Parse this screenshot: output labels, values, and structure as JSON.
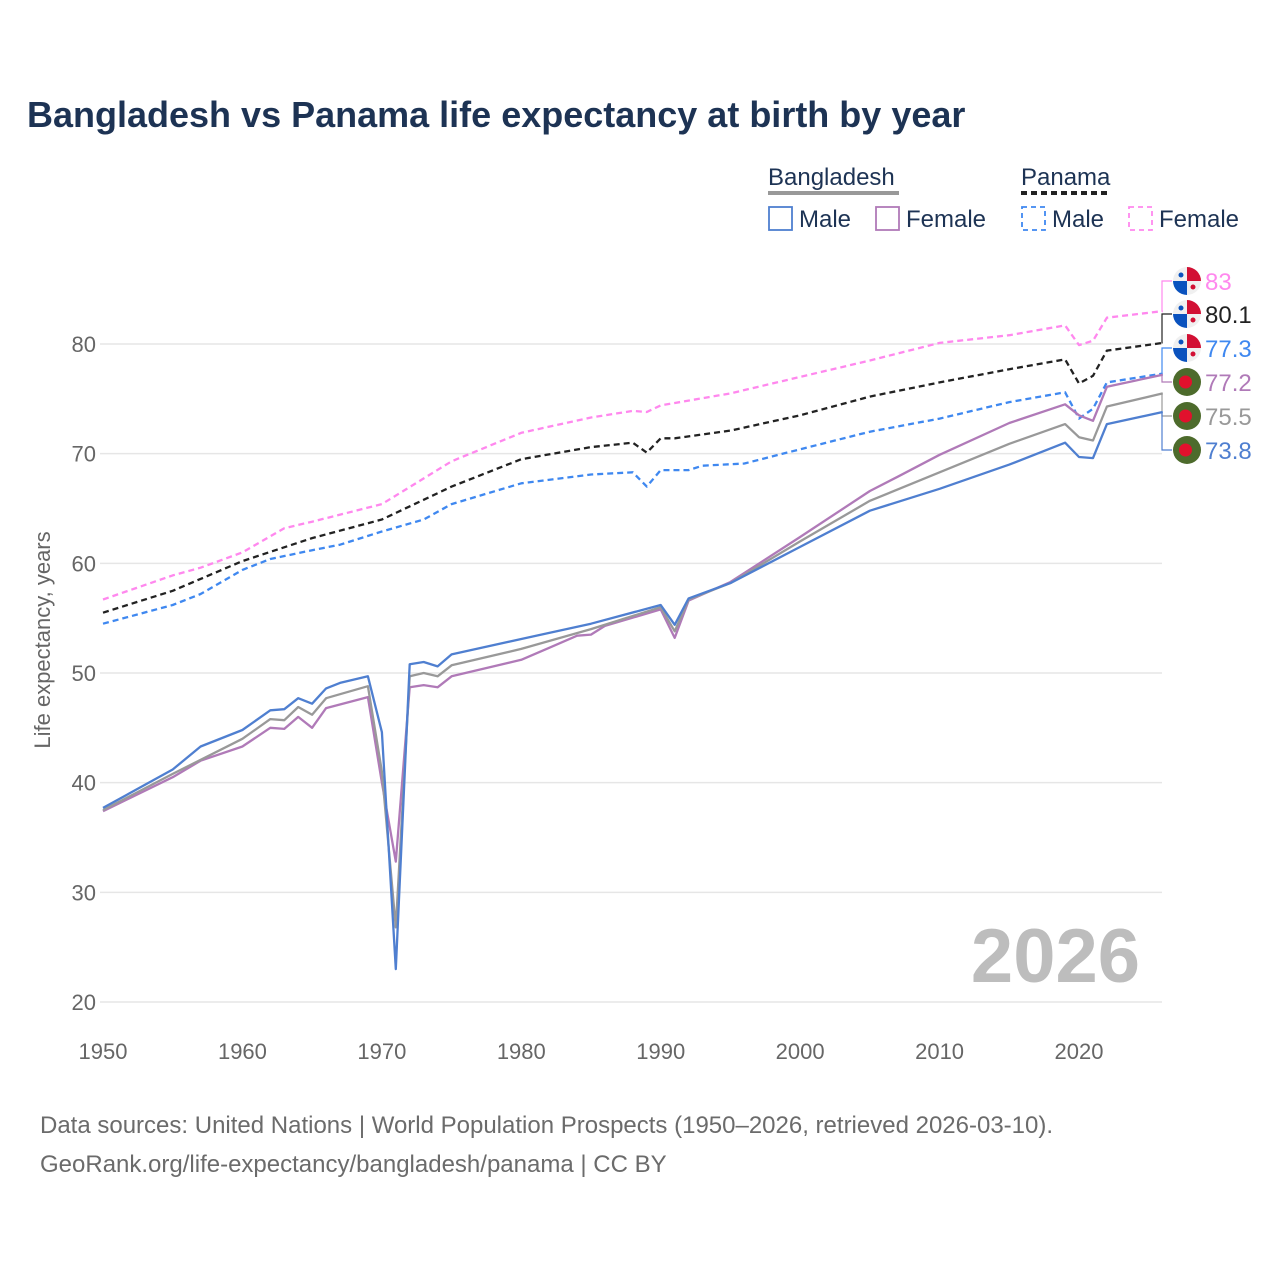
{
  "chart_data": {
    "type": "line",
    "title": "Bangladesh vs Panama life expectancy at birth by year",
    "ylabel": "Life expectancy, years",
    "xlabel": "",
    "xlim": [
      1950,
      2026
    ],
    "ylim": [
      20,
      85
    ],
    "xticks": [
      1950,
      1960,
      1970,
      1980,
      1990,
      2000,
      2010,
      2020
    ],
    "yticks": [
      20,
      30,
      40,
      50,
      60,
      70,
      80
    ],
    "grid": true,
    "watermark_year": "2026",
    "legend": {
      "placement": "top-right",
      "groups": [
        {
          "label": "Bangladesh",
          "items": [
            "Male",
            "Female"
          ]
        },
        {
          "label": "Panama",
          "items": [
            "Male",
            "Female"
          ]
        }
      ]
    },
    "series": [
      {
        "name": "Panama Female",
        "country": "panama",
        "color": "#ff88ee",
        "dashed": true,
        "end_label": "83",
        "points": [
          [
            1950,
            56.7
          ],
          [
            1955,
            58.9
          ],
          [
            1957,
            59.6
          ],
          [
            1960,
            61
          ],
          [
            1963,
            63.2
          ],
          [
            1965,
            63.8
          ],
          [
            1970,
            65.4
          ],
          [
            1975,
            69.3
          ],
          [
            1980,
            71.9
          ],
          [
            1985,
            73.3
          ],
          [
            1988,
            73.9
          ],
          [
            1989,
            73.8
          ],
          [
            1990,
            74.4
          ],
          [
            1995,
            75.5
          ],
          [
            2000,
            77
          ],
          [
            2005,
            78.5
          ],
          [
            2010,
            80.1
          ],
          [
            2015,
            80.8
          ],
          [
            2019,
            81.7
          ],
          [
            2020,
            79.9
          ],
          [
            2021,
            80.3
          ],
          [
            2022,
            82.4
          ],
          [
            2026,
            83
          ]
        ]
      },
      {
        "name": "Panama Total",
        "country": "panama",
        "color": "#222222",
        "dashed": true,
        "end_label": "80.1",
        "points": [
          [
            1950,
            55.5
          ],
          [
            1955,
            57.5
          ],
          [
            1960,
            60.2
          ],
          [
            1965,
            62.3
          ],
          [
            1970,
            64
          ],
          [
            1975,
            67
          ],
          [
            1980,
            69.5
          ],
          [
            1985,
            70.6
          ],
          [
            1988,
            71
          ],
          [
            1989,
            70.1
          ],
          [
            1990,
            71.4
          ],
          [
            1991,
            71.4
          ],
          [
            1995,
            72.1
          ],
          [
            2000,
            73.5
          ],
          [
            2005,
            75.2
          ],
          [
            2010,
            76.5
          ],
          [
            2015,
            77.7
          ],
          [
            2019,
            78.6
          ],
          [
            2020,
            76.4
          ],
          [
            2021,
            77.1
          ],
          [
            2022,
            79.4
          ],
          [
            2026,
            80.1
          ]
        ]
      },
      {
        "name": "Panama Male",
        "country": "panama",
        "color": "#3f88f0",
        "dashed": true,
        "end_label": "77.3",
        "points": [
          [
            1950,
            54.5
          ],
          [
            1955,
            56.2
          ],
          [
            1957,
            57.2
          ],
          [
            1960,
            59.4
          ],
          [
            1962,
            60.4
          ],
          [
            1965,
            61.2
          ],
          [
            1967,
            61.7
          ],
          [
            1970,
            62.9
          ],
          [
            1973,
            64
          ],
          [
            1975,
            65.4
          ],
          [
            1980,
            67.3
          ],
          [
            1985,
            68.1
          ],
          [
            1988,
            68.3
          ],
          [
            1989,
            67
          ],
          [
            1990,
            68.5
          ],
          [
            1992,
            68.5
          ],
          [
            1993,
            68.9
          ],
          [
            1996,
            69.1
          ],
          [
            2000,
            70.4
          ],
          [
            2005,
            72
          ],
          [
            2010,
            73.2
          ],
          [
            2015,
            74.7
          ],
          [
            2019,
            75.6
          ],
          [
            2020,
            73.2
          ],
          [
            2021,
            74.1
          ],
          [
            2022,
            76.5
          ],
          [
            2026,
            77.3
          ]
        ]
      },
      {
        "name": "Bangladesh Female",
        "country": "bangladesh",
        "color": "#b07ab8",
        "dashed": false,
        "end_label": "77.2",
        "points": [
          [
            1950,
            37.4
          ],
          [
            1955,
            40.5
          ],
          [
            1957,
            42
          ],
          [
            1960,
            43.3
          ],
          [
            1962,
            45
          ],
          [
            1963,
            44.9
          ],
          [
            1964,
            46
          ],
          [
            1965,
            45
          ],
          [
            1966,
            46.8
          ],
          [
            1969,
            47.8
          ],
          [
            1970,
            40
          ],
          [
            1971,
            32.8
          ],
          [
            1972,
            48.7
          ],
          [
            1973,
            48.9
          ],
          [
            1974,
            48.7
          ],
          [
            1975,
            49.7
          ],
          [
            1980,
            51.2
          ],
          [
            1982,
            52.3
          ],
          [
            1984,
            53.4
          ],
          [
            1985,
            53.5
          ],
          [
            1986,
            54.3
          ],
          [
            1990,
            55.8
          ],
          [
            1991,
            53.2
          ],
          [
            1992,
            56.6
          ],
          [
            1995,
            58.3
          ],
          [
            2000,
            62.4
          ],
          [
            2005,
            66.6
          ],
          [
            2007,
            67.9
          ],
          [
            2010,
            69.9
          ],
          [
            2015,
            72.8
          ],
          [
            2019,
            74.5
          ],
          [
            2020,
            73.5
          ],
          [
            2021,
            73
          ],
          [
            2022,
            76.1
          ],
          [
            2026,
            77.2
          ]
        ]
      },
      {
        "name": "Bangladesh Total",
        "country": "bangladesh",
        "color": "#999999",
        "dashed": false,
        "end_label": "75.5",
        "points": [
          [
            1950,
            37.5
          ],
          [
            1955,
            40.8
          ],
          [
            1960,
            44
          ],
          [
            1962,
            45.8
          ],
          [
            1963,
            45.7
          ],
          [
            1964,
            46.9
          ],
          [
            1965,
            46.2
          ],
          [
            1966,
            47.7
          ],
          [
            1969,
            48.8
          ],
          [
            1970,
            41
          ],
          [
            1971,
            26.8
          ],
          [
            1972,
            49.7
          ],
          [
            1973,
            50
          ],
          [
            1974,
            49.7
          ],
          [
            1975,
            50.7
          ],
          [
            1980,
            52.2
          ],
          [
            1985,
            54
          ],
          [
            1990,
            56
          ],
          [
            1991,
            53.8
          ],
          [
            1992,
            56.7
          ],
          [
            1995,
            58.2
          ],
          [
            2000,
            62
          ],
          [
            2005,
            65.7
          ],
          [
            2010,
            68.3
          ],
          [
            2015,
            70.9
          ],
          [
            2019,
            72.7
          ],
          [
            2020,
            71.5
          ],
          [
            2021,
            71.2
          ],
          [
            2022,
            74.3
          ],
          [
            2026,
            75.5
          ]
        ]
      },
      {
        "name": "Bangladesh Male",
        "country": "bangladesh",
        "color": "#4f7fd0",
        "dashed": false,
        "end_label": "73.8",
        "points": [
          [
            1950,
            37.7
          ],
          [
            1955,
            41.2
          ],
          [
            1957,
            43.3
          ],
          [
            1960,
            44.8
          ],
          [
            1962,
            46.6
          ],
          [
            1963,
            46.7
          ],
          [
            1964,
            47.7
          ],
          [
            1965,
            47.2
          ],
          [
            1966,
            48.6
          ],
          [
            1967,
            49.1
          ],
          [
            1969,
            49.7
          ],
          [
            1970,
            44.6
          ],
          [
            1971,
            23
          ],
          [
            1972,
            50.8
          ],
          [
            1973,
            51
          ],
          [
            1974,
            50.6
          ],
          [
            1975,
            51.7
          ],
          [
            1980,
            53.1
          ],
          [
            1985,
            54.5
          ],
          [
            1990,
            56.2
          ],
          [
            1991,
            54.4
          ],
          [
            1992,
            56.8
          ],
          [
            1995,
            58.2
          ],
          [
            2000,
            61.5
          ],
          [
            2005,
            64.8
          ],
          [
            2010,
            66.8
          ],
          [
            2015,
            69
          ],
          [
            2019,
            71
          ],
          [
            2020,
            69.7
          ],
          [
            2021,
            69.6
          ],
          [
            2022,
            72.7
          ],
          [
            2026,
            73.8
          ]
        ]
      }
    ]
  },
  "footer": {
    "line1": "Data sources: United Nations | World Population Prospects (1950–2026, retrieved 2026-03-10).",
    "line2": "GeoRank.org/life-expectancy/bangladesh/panama | CC BY"
  }
}
